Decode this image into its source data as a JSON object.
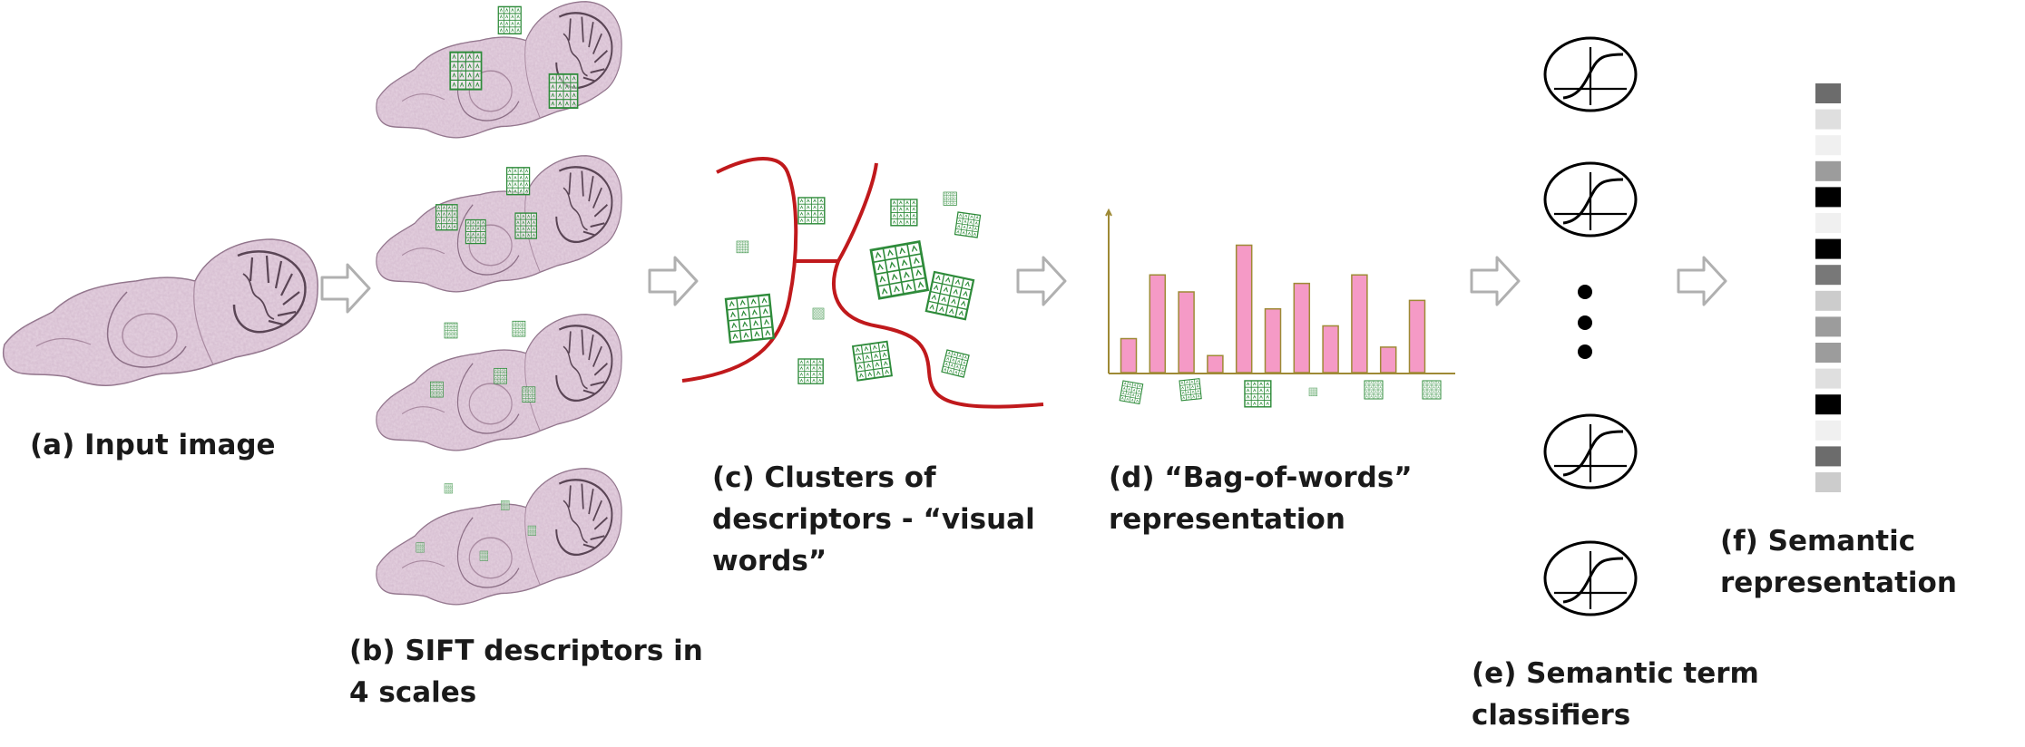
{
  "pipeline": {
    "stages": [
      {
        "id": "a",
        "lines": [
          "(a) Input image"
        ]
      },
      {
        "id": "b",
        "lines": [
          "(b) SIFT descriptors in",
          "4 scales"
        ]
      },
      {
        "id": "c",
        "lines": [
          "(c) Clusters of",
          "descriptors  - “visual",
          "words”"
        ]
      },
      {
        "id": "d",
        "lines": [
          "(d) “Bag-of-words”",
          "representation"
        ]
      },
      {
        "id": "e",
        "lines": [
          "(e) Semantic term",
          "classifiers"
        ]
      },
      {
        "id": "f",
        "lines": [
          "(f) Semantic",
          "representation"
        ]
      }
    ]
  },
  "chart_data": {
    "type": "bar",
    "title": "",
    "xlabel": "",
    "ylabel": "",
    "values": [
      4,
      11.5,
      9.5,
      2,
      15,
      7.5,
      10.5,
      5.5,
      11.5,
      3,
      8.5
    ],
    "ylim": [
      0,
      19
    ]
  },
  "semantic_vector": {
    "values": [
      0.55,
      0.07,
      0.0,
      0.35,
      1.0,
      0.0,
      1.0,
      0.5,
      0.15,
      0.35,
      0.35,
      0.07,
      1.0,
      0.0,
      0.55,
      0.15
    ]
  },
  "colors": {
    "arrow": "#b0b0b0",
    "cluster_boundary": "#c0191c",
    "descriptor_grid": "#2e8b3a",
    "bar_fill": "#f59ac6",
    "bar_stroke": "#9e8a35",
    "axis": "#9e8a35",
    "tissue": "#c9a9bf"
  }
}
